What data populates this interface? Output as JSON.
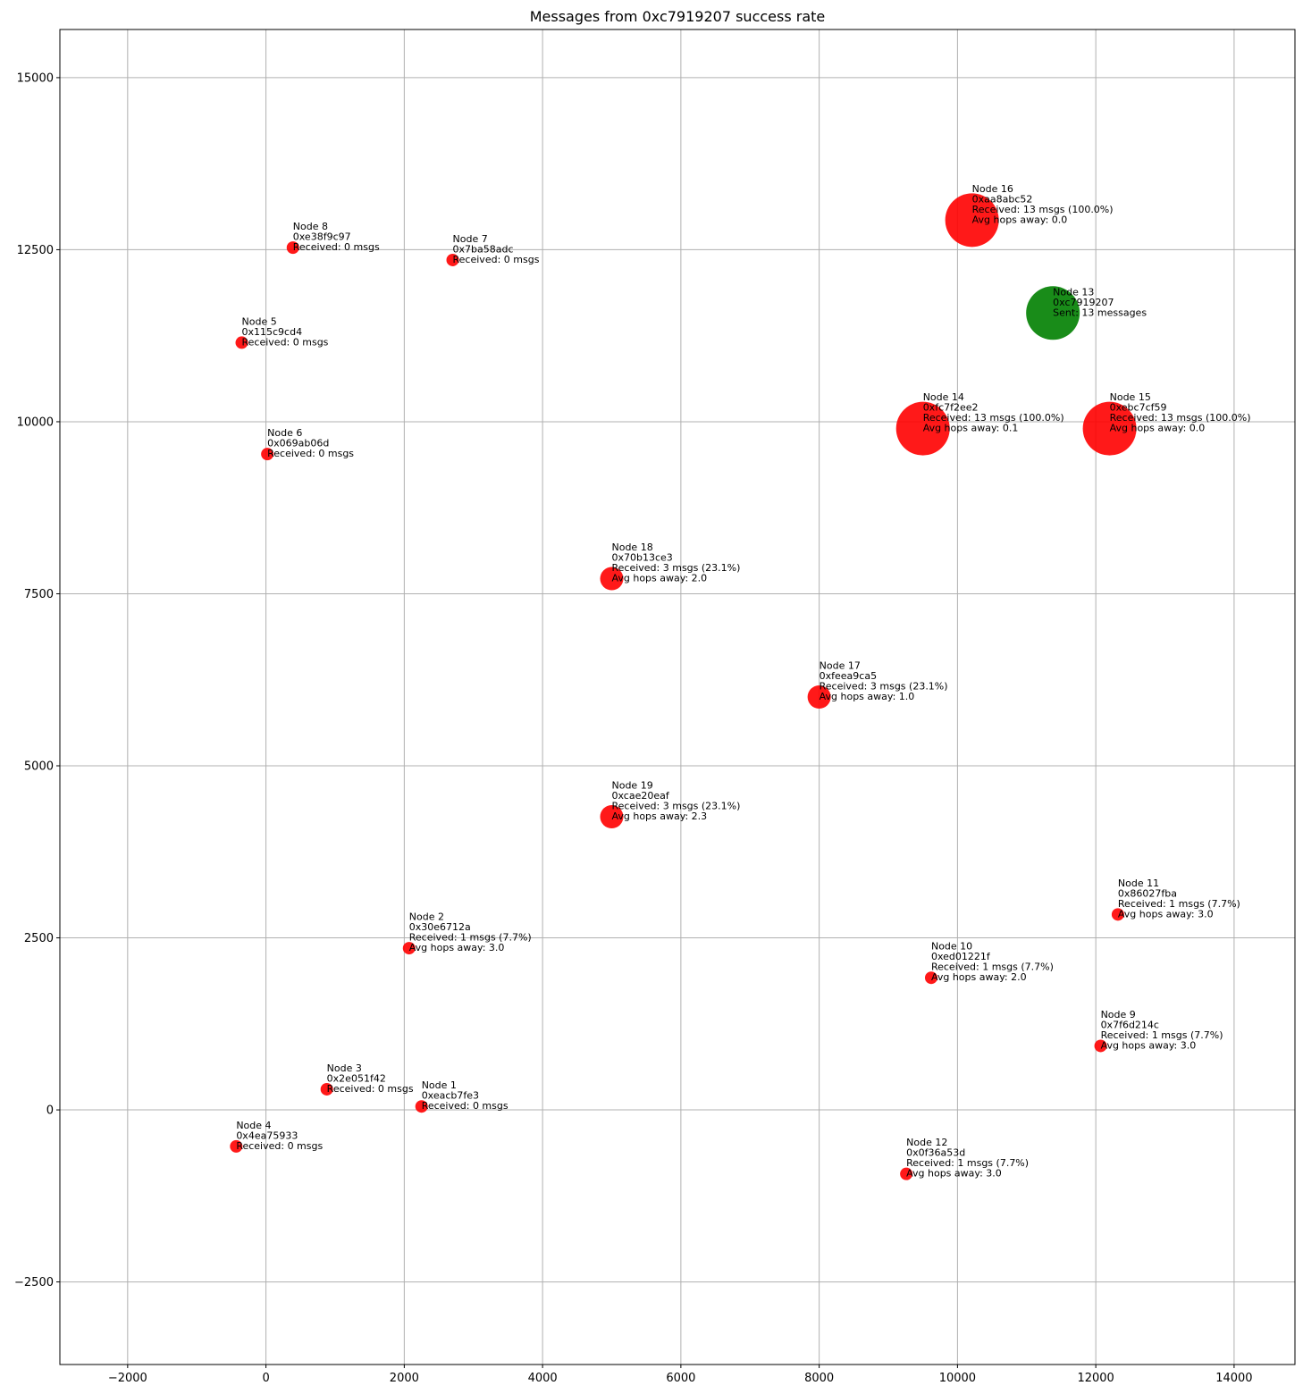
{
  "chart_data": {
    "type": "scatter",
    "title": "Messages from 0xc7919207 success rate",
    "xlabel": "",
    "ylabel": "",
    "xlim": [
      -2980,
      14880
    ],
    "ylim": [
      -3700,
      15700
    ],
    "xticks": [
      -2000,
      0,
      2000,
      4000,
      6000,
      8000,
      10000,
      12000,
      14000
    ],
    "yticks": [
      -2500,
      0,
      2500,
      5000,
      7500,
      10000,
      12500,
      15000
    ],
    "grid": true,
    "colors": {
      "sender": "#008000",
      "receiver": "#ff0000"
    },
    "points": [
      {
        "x": 2250,
        "y": 50,
        "size": 1,
        "role": "receiver",
        "lines": [
          "Node 1",
          "0xeacb7fe3",
          "Received: 0 msgs"
        ]
      },
      {
        "x": 2070,
        "y": 2350,
        "size": 1,
        "role": "receiver",
        "lines": [
          "Node 2",
          "0x30e6712a",
          "Received: 1 msgs (7.7%)",
          "Avg hops away: 3.0"
        ]
      },
      {
        "x": 880,
        "y": 300,
        "size": 1,
        "role": "receiver",
        "lines": [
          "Node 3",
          "0x2e051f42",
          "Received: 0 msgs"
        ]
      },
      {
        "x": -430,
        "y": -530,
        "size": 1,
        "role": "receiver",
        "lines": [
          "Node 4",
          "0x4ea75933",
          "Received: 0 msgs"
        ]
      },
      {
        "x": -350,
        "y": 11150,
        "size": 1,
        "role": "receiver",
        "lines": [
          "Node 5",
          "0x115c9cd4",
          "Received: 0 msgs"
        ]
      },
      {
        "x": 20,
        "y": 9530,
        "size": 1,
        "role": "receiver",
        "lines": [
          "Node 6",
          "0x069ab06d",
          "Received: 0 msgs"
        ]
      },
      {
        "x": 2700,
        "y": 12350,
        "size": 1,
        "role": "receiver",
        "lines": [
          "Node 7",
          "0x7ba58adc",
          "Received: 0 msgs"
        ]
      },
      {
        "x": 390,
        "y": 12530,
        "size": 1,
        "role": "receiver",
        "lines": [
          "Node 8",
          "0xe38f9c97",
          "Received: 0 msgs"
        ]
      },
      {
        "x": 12070,
        "y": 930,
        "size": 1,
        "role": "receiver",
        "lines": [
          "Node 9",
          "0x7f6d214c",
          "Received: 1 msgs (7.7%)",
          "Avg hops away: 3.0"
        ]
      },
      {
        "x": 9620,
        "y": 1920,
        "size": 1,
        "role": "receiver",
        "lines": [
          "Node 10",
          "0xed01221f",
          "Received: 1 msgs (7.7%)",
          "Avg hops away: 2.0"
        ]
      },
      {
        "x": 12320,
        "y": 2840,
        "size": 1,
        "role": "receiver",
        "lines": [
          "Node 11",
          "0x86027fba",
          "Received: 1 msgs (7.7%)",
          "Avg hops away: 3.0"
        ]
      },
      {
        "x": 9260,
        "y": -930,
        "size": 1,
        "role": "receiver",
        "lines": [
          "Node 12",
          "0x0f36a53d",
          "Received: 1 msgs (7.7%)",
          "Avg hops away: 3.0"
        ]
      },
      {
        "x": 11380,
        "y": 11580,
        "size": 13,
        "role": "sender",
        "lines": [
          "Node 13",
          "0xc7919207",
          "Sent: 13 messages"
        ]
      },
      {
        "x": 9500,
        "y": 9900,
        "size": 13,
        "role": "receiver",
        "lines": [
          "Node 14",
          "0xfc7f2ee2",
          "Received: 13 msgs (100.0%)",
          "Avg hops away: 0.1"
        ]
      },
      {
        "x": 12200,
        "y": 9900,
        "size": 13,
        "role": "receiver",
        "lines": [
          "Node 15",
          "0xebc7cf59",
          "Received: 13 msgs (100.0%)",
          "Avg hops away: 0.0"
        ]
      },
      {
        "x": 10210,
        "y": 12930,
        "size": 13,
        "role": "receiver",
        "lines": [
          "Node 16",
          "0xaa8abc52",
          "Received: 13 msgs (100.0%)",
          "Avg hops away: 0.0"
        ]
      },
      {
        "x": 8000,
        "y": 6000,
        "size": 3,
        "role": "receiver",
        "lines": [
          "Node 17",
          "0xfeea9ca5",
          "Received: 3 msgs (23.1%)",
          "Avg hops away: 1.0"
        ]
      },
      {
        "x": 5000,
        "y": 7720,
        "size": 3,
        "role": "receiver",
        "lines": [
          "Node 18",
          "0x70b13ce3",
          "Received: 3 msgs (23.1%)",
          "Avg hops away: 2.0"
        ]
      },
      {
        "x": 5000,
        "y": 4260,
        "size": 3,
        "role": "receiver",
        "lines": [
          "Node 19",
          "0xcae20eaf",
          "Received: 3 msgs (23.1%)",
          "Avg hops away: 2.3"
        ]
      }
    ]
  }
}
